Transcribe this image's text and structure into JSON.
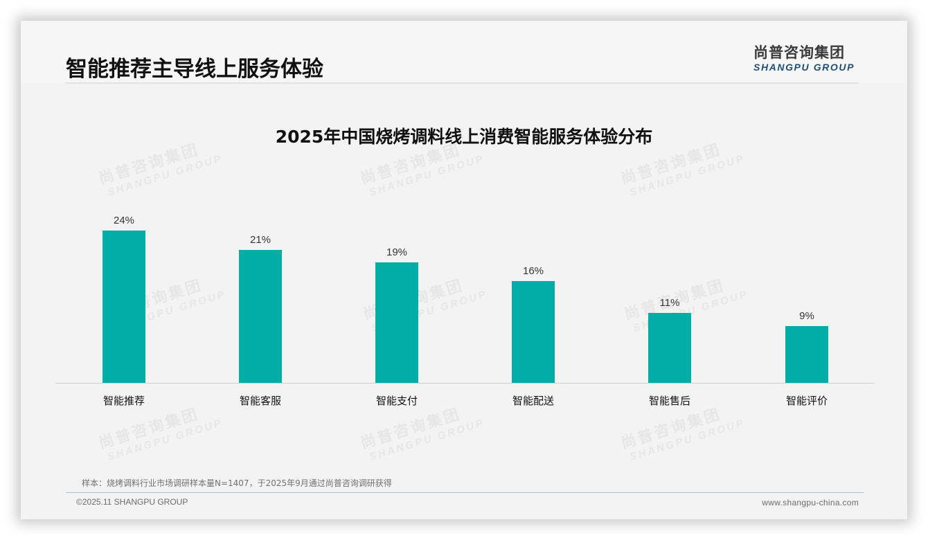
{
  "header": {
    "title": "智能推荐主导线上服务体验",
    "logo_cn": "尚普咨询集团",
    "logo_en": "SHANGPU GROUP"
  },
  "watermark": {
    "cn": "尚普咨询集团",
    "en": "SHANGPU GROUP"
  },
  "colors": {
    "bar": "#00aea7",
    "logo_en": "#1f4e79"
  },
  "chart_data": {
    "type": "bar",
    "title": "2025年中国烧烤调料线上消费智能服务体验分布",
    "categories": [
      "智能推荐",
      "智能客服",
      "智能支付",
      "智能配送",
      "智能售后",
      "智能评价"
    ],
    "values": [
      24,
      21,
      19,
      16,
      11,
      9
    ],
    "value_labels": [
      "24%",
      "21%",
      "19%",
      "16%",
      "11%",
      "9%"
    ],
    "unit": "%",
    "xlabel": "",
    "ylabel": "",
    "ylim": [
      0,
      24
    ],
    "grid": false,
    "legend": null,
    "color": "#00aea7"
  },
  "footer": {
    "note": "样本：烧烤调料行业市场调研样本量N=1407，于2025年9月通过尚普咨询调研获得",
    "copyright": "©2025.11 SHANGPU GROUP",
    "website": "www.shangpu-china.com"
  }
}
